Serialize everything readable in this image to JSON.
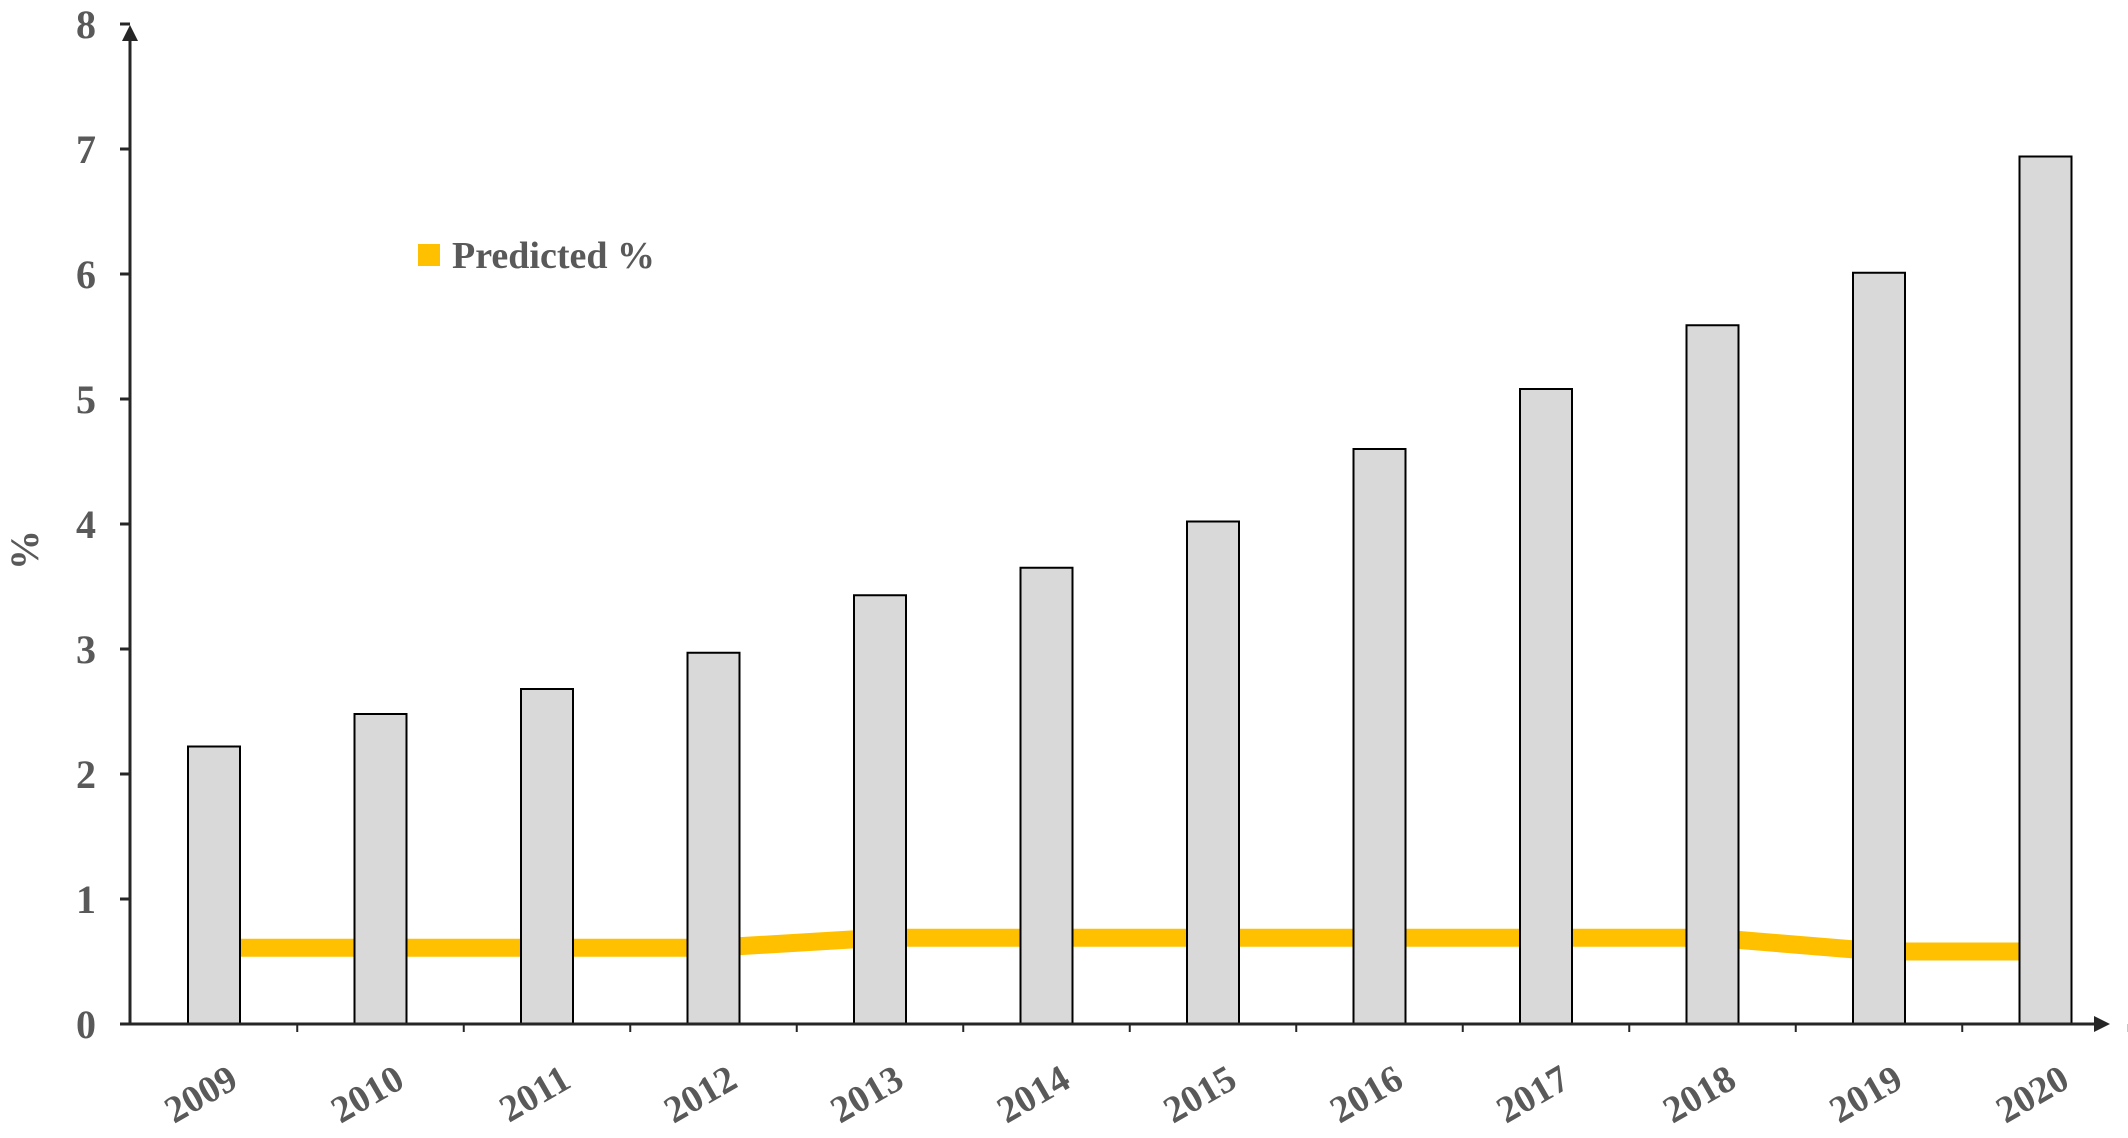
{
  "chart_data": {
    "type": "bar",
    "categories": [
      "2009",
      "2010",
      "2011",
      "2012",
      "2013",
      "2014",
      "2015",
      "2016",
      "2017",
      "2018",
      "2019",
      "2020"
    ],
    "series": [
      {
        "type": "bar",
        "values": [
          2.22,
          2.48,
          2.68,
          2.97,
          3.43,
          3.65,
          4.02,
          4.6,
          5.08,
          5.59,
          6.01,
          6.94
        ],
        "color": "#d9d9d9",
        "stroke": "#000000"
      },
      {
        "type": "line",
        "name": "Predicted %",
        "values": [
          0.61,
          0.61,
          0.61,
          0.61,
          0.69,
          0.69,
          0.69,
          0.69,
          0.69,
          0.69,
          0.58,
          0.58
        ],
        "color": "#ffc000"
      }
    ],
    "title": "",
    "xlabel": "",
    "ylabel": "%",
    "ylim": [
      0,
      8
    ],
    "yticks": [
      "0",
      "1",
      "2",
      "3",
      "4",
      "5",
      "6",
      "7",
      "8"
    ],
    "grid": false,
    "legend": "top-left"
  }
}
